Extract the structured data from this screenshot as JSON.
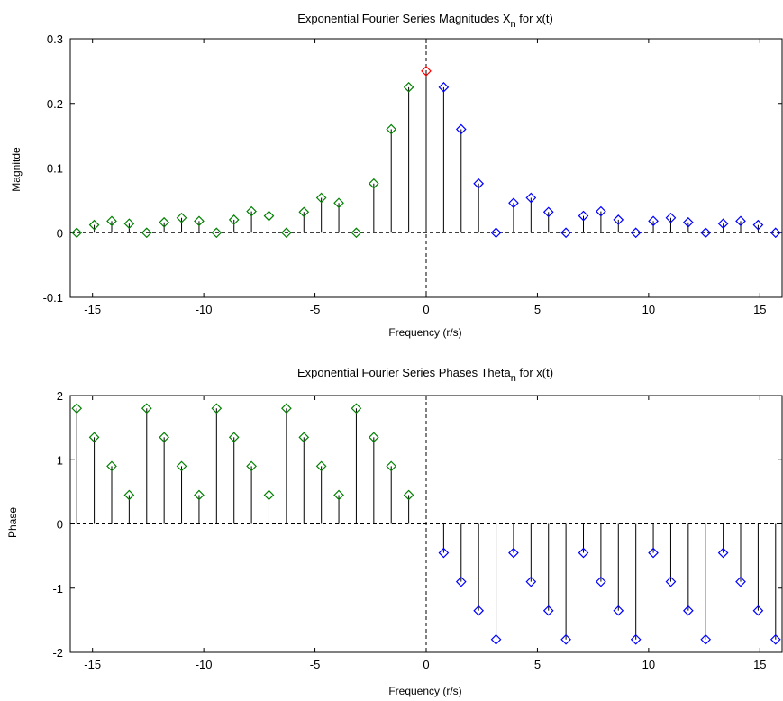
{
  "colors": {
    "negative_harmonics": "#008000",
    "dc_term": "#ff0000",
    "positive_harmonics": "#0000ff",
    "stem": "#000000"
  },
  "chart_data": [
    {
      "type": "stem",
      "title_main": "Exponential Fourier Series Magnitudes X",
      "title_sub": "n",
      "title_tail": " for x(t)",
      "xlabel": "Frequency (r/s)",
      "ylabel": "Magnitde",
      "xlim": [
        -16,
        16
      ],
      "ylim": [
        -0.1,
        0.3
      ],
      "xticks": [
        -15,
        -10,
        -5,
        0,
        5,
        10,
        15
      ],
      "xtick_labels": [
        "-15",
        "-10",
        "-5",
        "0",
        "5",
        "10",
        "15"
      ],
      "yticks": [
        -0.1,
        0,
        0.1,
        0.2,
        0.3
      ],
      "ytick_labels": [
        "-0.1",
        "0",
        "0.1",
        "0.2",
        "0.3"
      ],
      "series": [
        {
          "color": "#008000",
          "x": [
            -15.708,
            -14.923,
            -14.137,
            -13.352,
            -12.566,
            -11.781,
            -10.996,
            -10.21,
            -9.425,
            -8.639,
            -7.854,
            -7.069,
            -6.283,
            -5.498,
            -4.712,
            -3.927,
            -3.142,
            -2.356,
            -1.571,
            -0.785
          ],
          "y": [
            0,
            0.012,
            0.018,
            0.014,
            0,
            0.016,
            0.023,
            0.018,
            0,
            0.02,
            0.033,
            0.026,
            0,
            0.032,
            0.054,
            0.046,
            0,
            0.076,
            0.16,
            0.225
          ]
        },
        {
          "color": "#ff0000",
          "x": [
            0
          ],
          "y": [
            0.25
          ]
        },
        {
          "color": "#0000ff",
          "x": [
            0.785,
            1.571,
            2.356,
            3.142,
            3.927,
            4.712,
            5.498,
            6.283,
            7.069,
            7.854,
            8.639,
            9.425,
            10.21,
            10.996,
            11.781,
            12.566,
            13.352,
            14.137,
            14.923,
            15.708
          ],
          "y": [
            0.225,
            0.16,
            0.076,
            0,
            0.046,
            0.054,
            0.032,
            0,
            0.026,
            0.033,
            0.02,
            0,
            0.018,
            0.023,
            0.016,
            0,
            0.014,
            0.018,
            0.012,
            0
          ]
        }
      ]
    },
    {
      "type": "stem",
      "title_main": "Exponential Fourier Series Phases Theta",
      "title_sub": "n",
      "title_tail": " for x(t)",
      "xlabel": "Frequency (r/s)",
      "ylabel": "Phase",
      "xlim": [
        -16,
        16
      ],
      "ylim": [
        -2,
        2
      ],
      "xticks": [
        -15,
        -10,
        -5,
        0,
        5,
        10,
        15
      ],
      "xtick_labels": [
        "-15",
        "-10",
        "-5",
        "0",
        "5",
        "10",
        "15"
      ],
      "yticks": [
        -2,
        -1,
        0,
        1,
        2
      ],
      "ytick_labels": [
        "-2",
        "-1",
        "0",
        "1",
        "2"
      ],
      "series": [
        {
          "color": "#008000",
          "x": [
            -15.708,
            -14.923,
            -14.137,
            -13.352,
            -12.566,
            -11.781,
            -10.996,
            -10.21,
            -9.425,
            -8.639,
            -7.854,
            -7.069,
            -6.283,
            -5.498,
            -4.712,
            -3.927,
            -3.142,
            -2.356,
            -1.571,
            -0.785
          ],
          "y": [
            1.8,
            1.35,
            0.9,
            0.45,
            1.8,
            1.35,
            0.9,
            0.45,
            1.8,
            1.35,
            0.9,
            0.45,
            1.8,
            1.35,
            0.9,
            0.45,
            1.8,
            1.35,
            0.9,
            0.45
          ]
        },
        {
          "color": "#0000ff",
          "x": [
            0.785,
            1.571,
            2.356,
            3.142,
            3.927,
            4.712,
            5.498,
            6.283,
            7.069,
            7.854,
            8.639,
            9.425,
            10.21,
            10.996,
            11.781,
            12.566,
            13.352,
            14.137,
            14.923,
            15.708
          ],
          "y": [
            -0.45,
            -0.9,
            -1.35,
            -1.8,
            -0.45,
            -0.9,
            -1.35,
            -1.8,
            -0.45,
            -0.9,
            -1.35,
            -1.8,
            -0.45,
            -0.9,
            -1.35,
            -1.8,
            -0.45,
            -0.9,
            -1.35,
            -1.8
          ]
        }
      ]
    }
  ]
}
